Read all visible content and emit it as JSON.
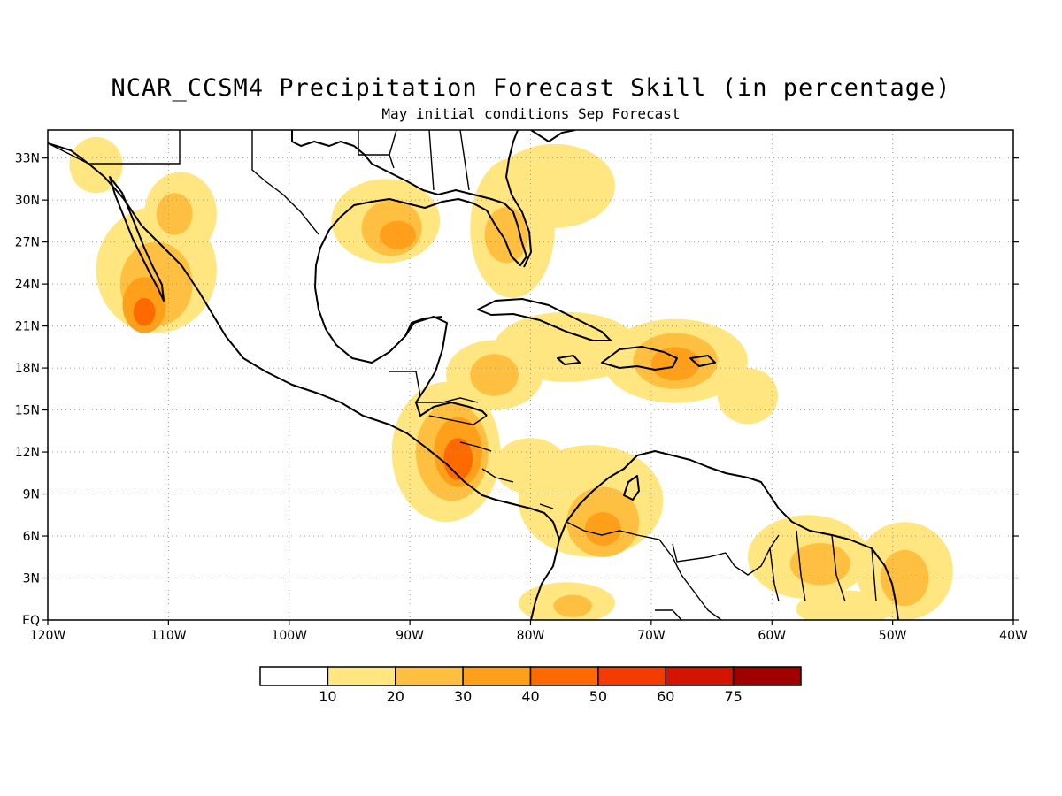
{
  "title": "NCAR_CCSM4 Precipitation Forecast Skill (in percentage)",
  "subtitle": "May initial conditions  Sep Forecast",
  "x_ticks": [
    "120W",
    "110W",
    "100W",
    "90W",
    "80W",
    "70W",
    "60W",
    "50W",
    "40W"
  ],
  "y_ticks": [
    "EQ",
    "3N",
    "6N",
    "9N",
    "12N",
    "15N",
    "18N",
    "21N",
    "24N",
    "27N",
    "30N",
    "33N"
  ],
  "x_tick_values": [
    -120,
    -110,
    -100,
    -90,
    -80,
    -70,
    -60,
    -50,
    -40
  ],
  "y_tick_values": [
    0,
    3,
    6,
    9,
    12,
    15,
    18,
    21,
    24,
    27,
    30,
    33
  ],
  "extent": {
    "lon": [
      -120,
      -40
    ],
    "lat": [
      0,
      35
    ]
  },
  "colorbar": {
    "labels": [
      "10",
      "20",
      "30",
      "40",
      "50",
      "60",
      "75"
    ],
    "colors": [
      "#ffffff",
      "#ffe680",
      "#ffbf40",
      "#ff9f1a",
      "#ff6a00",
      "#f43b00",
      "#d21400",
      "#a00000"
    ]
  },
  "skill_regions": [
    {
      "level": 1,
      "lon": -87,
      "lat": 12,
      "rx": 4.5,
      "ry": 5
    },
    {
      "level": 2,
      "lon": -86.5,
      "lat": 12,
      "rx": 3,
      "ry": 3.5
    },
    {
      "level": 3,
      "lon": -86,
      "lat": 12,
      "rx": 2,
      "ry": 2.5
    },
    {
      "level": 4,
      "lon": -86,
      "lat": 11.5,
      "rx": 1.2,
      "ry": 1.5
    },
    {
      "level": 1,
      "lon": -111,
      "lat": 25,
      "rx": 5,
      "ry": 4.5
    },
    {
      "level": 2,
      "lon": -111,
      "lat": 24,
      "rx": 3,
      "ry": 3
    },
    {
      "level": 3,
      "lon": -112,
      "lat": 22.5,
      "rx": 1.8,
      "ry": 2
    },
    {
      "level": 4,
      "lon": -112,
      "lat": 22,
      "rx": 0.9,
      "ry": 1
    },
    {
      "level": 1,
      "lon": -109,
      "lat": 29,
      "rx": 3,
      "ry": 3
    },
    {
      "level": 2,
      "lon": -109.5,
      "lat": 29,
      "rx": 1.5,
      "ry": 1.5
    },
    {
      "level": 1,
      "lon": -92,
      "lat": 28.5,
      "rx": 4.5,
      "ry": 3
    },
    {
      "level": 2,
      "lon": -91.5,
      "lat": 28,
      "rx": 2.5,
      "ry": 2
    },
    {
      "level": 3,
      "lon": -91,
      "lat": 27.5,
      "rx": 1.5,
      "ry": 1
    },
    {
      "level": 1,
      "lon": -81.5,
      "lat": 28,
      "rx": 3.5,
      "ry": 5
    },
    {
      "level": 2,
      "lon": -82,
      "lat": 27.5,
      "rx": 1.8,
      "ry": 2
    },
    {
      "level": 1,
      "lon": -78,
      "lat": 31,
      "rx": 5,
      "ry": 3
    },
    {
      "level": 1,
      "lon": -68,
      "lat": 18.5,
      "rx": 6,
      "ry": 3
    },
    {
      "level": 2,
      "lon": -68,
      "lat": 18.5,
      "rx": 3.5,
      "ry": 2
    },
    {
      "level": 3,
      "lon": -68,
      "lat": 18.3,
      "rx": 2,
      "ry": 1.2
    },
    {
      "level": 1,
      "lon": -77,
      "lat": 19.5,
      "rx": 6,
      "ry": 2.5
    },
    {
      "level": 1,
      "lon": -83,
      "lat": 17.5,
      "rx": 4,
      "ry": 2.5
    },
    {
      "level": 2,
      "lon": -83,
      "lat": 17.5,
      "rx": 2,
      "ry": 1.5
    },
    {
      "level": 1,
      "lon": -75,
      "lat": 8.5,
      "rx": 6,
      "ry": 4
    },
    {
      "level": 2,
      "lon": -74,
      "lat": 7,
      "rx": 3,
      "ry": 2.5
    },
    {
      "level": 3,
      "lon": -74,
      "lat": 6.5,
      "rx": 1.5,
      "ry": 1.2
    },
    {
      "level": 1,
      "lon": -80,
      "lat": 11,
      "rx": 3,
      "ry": 2
    },
    {
      "level": 1,
      "lon": -57,
      "lat": 4.5,
      "rx": 5,
      "ry": 3
    },
    {
      "level": 2,
      "lon": -56,
      "lat": 4,
      "rx": 2.5,
      "ry": 1.5
    },
    {
      "level": 1,
      "lon": -49,
      "lat": 3.5,
      "rx": 4,
      "ry": 3.5
    },
    {
      "level": 2,
      "lon": -49,
      "lat": 3,
      "rx": 2,
      "ry": 2
    },
    {
      "level": 1,
      "lon": -54,
      "lat": 0.8,
      "rx": 4,
      "ry": 1.3
    },
    {
      "level": 1,
      "lon": -77,
      "lat": 1.2,
      "rx": 4,
      "ry": 1.5
    },
    {
      "level": 2,
      "lon": -76.5,
      "lat": 1,
      "rx": 1.6,
      "ry": 0.8
    },
    {
      "level": 1,
      "lon": -62,
      "lat": 16,
      "rx": 2.5,
      "ry": 2
    },
    {
      "level": 1,
      "lon": -116,
      "lat": 32.5,
      "rx": 2.2,
      "ry": 2
    }
  ]
}
